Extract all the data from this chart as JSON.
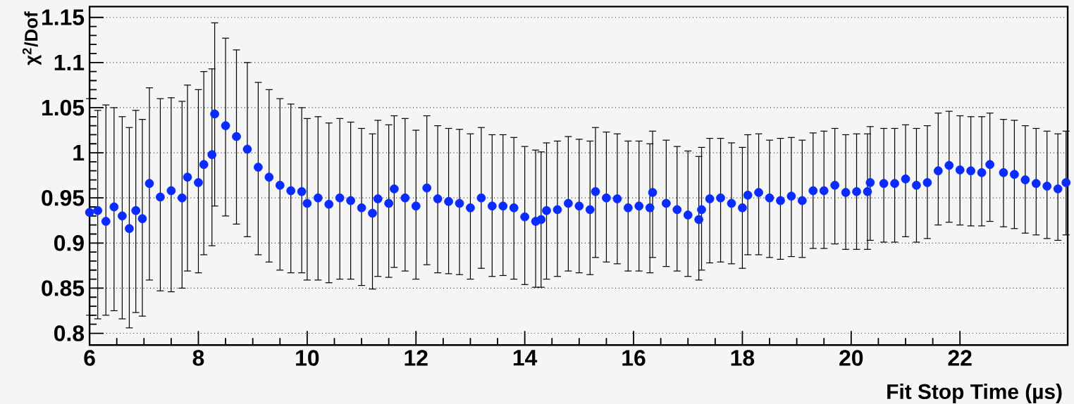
{
  "chart_data": {
    "type": "scatter",
    "xlabel": "Fit Stop Time (µs)",
    "ylabel": "χ$^{2}$/Dof",
    "xlim": [
      6,
      23.98
    ],
    "ylim": [
      0.787,
      1.162
    ],
    "xticks": [
      6,
      8,
      10,
      12,
      14,
      16,
      18,
      20,
      22
    ],
    "yticks": [
      0.8,
      0.85,
      0.9,
      0.95,
      1,
      1.05,
      1.1,
      1.15
    ],
    "grid": "y",
    "marker": "circle",
    "x": [
      6.0,
      6.15,
      6.3,
      6.45,
      6.6,
      6.73,
      6.85,
      6.97,
      7.1,
      7.3,
      7.5,
      7.7,
      7.8,
      8.0,
      8.1,
      8.25,
      8.3,
      8.5,
      8.7,
      8.9,
      9.1,
      9.3,
      9.5,
      9.7,
      9.9,
      10.0,
      10.2,
      10.4,
      10.6,
      10.8,
      11.0,
      11.2,
      11.3,
      11.5,
      11.6,
      11.8,
      12.0,
      12.2,
      12.4,
      12.6,
      12.8,
      13.0,
      13.2,
      13.4,
      13.6,
      13.8,
      14.0,
      14.2,
      14.3,
      14.4,
      14.6,
      14.8,
      15.0,
      15.2,
      15.3,
      15.5,
      15.7,
      15.9,
      16.1,
      16.3,
      16.35,
      16.6,
      16.8,
      17.0,
      17.2,
      17.25,
      17.4,
      17.6,
      17.8,
      18.0,
      18.1,
      18.3,
      18.5,
      18.7,
      18.9,
      19.1,
      19.3,
      19.5,
      19.7,
      19.9,
      20.1,
      20.3,
      20.35,
      20.6,
      20.8,
      21.0,
      21.2,
      21.4,
      21.6,
      21.8,
      22.0,
      22.2,
      22.4,
      22.55,
      22.8,
      23.0,
      23.2,
      23.4,
      23.6,
      23.8,
      23.95
    ],
    "series": [
      {
        "color": "#0a2bff",
        "values": [
          0.934,
          0.936,
          0.924,
          0.94,
          0.93,
          0.916,
          0.936,
          0.927,
          0.966,
          0.951,
          0.958,
          0.95,
          0.973,
          0.967,
          0.987,
          0.998,
          1.043,
          1.03,
          1.018,
          1.004,
          0.984,
          0.973,
          0.964,
          0.958,
          0.957,
          0.944,
          0.95,
          0.943,
          0.95,
          0.947,
          0.939,
          0.933,
          0.949,
          0.944,
          0.96,
          0.95,
          0.941,
          0.961,
          0.949,
          0.946,
          0.944,
          0.939,
          0.95,
          0.941,
          0.941,
          0.939,
          0.929,
          0.924,
          0.926,
          0.936,
          0.937,
          0.944,
          0.941,
          0.937,
          0.957,
          0.95,
          0.949,
          0.939,
          0.941,
          0.939,
          0.956,
          0.944,
          0.937,
          0.931,
          0.926,
          0.937,
          0.949,
          0.95,
          0.944,
          0.939,
          0.953,
          0.956,
          0.95,
          0.947,
          0.952,
          0.947,
          0.958,
          0.958,
          0.964,
          0.956,
          0.957,
          0.957,
          0.967,
          0.966,
          0.966,
          0.971,
          0.964,
          0.967,
          0.98,
          0.986,
          0.981,
          0.98,
          0.978,
          0.987,
          0.978,
          0.976,
          0.97,
          0.966,
          0.963,
          0.96,
          0.967
        ],
        "errors": [
          [
            0.82,
            1.06
          ],
          [
            0.816,
            1.047
          ],
          [
            0.82,
            1.053
          ],
          [
            0.825,
            1.05
          ],
          [
            0.816,
            1.04
          ],
          [
            0.806,
            1.028
          ],
          [
            0.823,
            1.047
          ],
          [
            0.819,
            1.037
          ],
          [
            0.859,
            1.072
          ],
          [
            0.847,
            1.06
          ],
          [
            0.846,
            1.061
          ],
          [
            0.85,
            1.057
          ],
          [
            0.869,
            1.075
          ],
          [
            0.867,
            1.07
          ],
          [
            0.887,
            1.09
          ],
          [
            0.897,
            1.093
          ],
          [
            0.941,
            1.144
          ],
          [
            0.93,
            1.127
          ],
          [
            0.921,
            1.114
          ],
          [
            0.907,
            1.1
          ],
          [
            0.887,
            1.078
          ],
          [
            0.879,
            1.07
          ],
          [
            0.87,
            1.06
          ],
          [
            0.867,
            1.054
          ],
          [
            0.867,
            1.05
          ],
          [
            0.859,
            1.038
          ],
          [
            0.859,
            1.04
          ],
          [
            0.856,
            1.033
          ],
          [
            0.86,
            1.038
          ],
          [
            0.86,
            1.034
          ],
          [
            0.853,
            1.027
          ],
          [
            0.849,
            1.021
          ],
          [
            0.863,
            1.036
          ],
          [
            0.862,
            1.031
          ],
          [
            0.873,
            1.041
          ],
          [
            0.869,
            1.038
          ],
          [
            0.86,
            1.025
          ],
          [
            0.876,
            1.041
          ],
          [
            0.867,
            1.03
          ],
          [
            0.866,
            1.027
          ],
          [
            0.865,
            1.026
          ],
          [
            0.86,
            1.021
          ],
          [
            0.872,
            1.028
          ],
          [
            0.863,
            1.02
          ],
          [
            0.864,
            1.02
          ],
          [
            0.86,
            1.017
          ],
          [
            0.854,
            1.007
          ],
          [
            0.851,
            1.003
          ],
          [
            0.851,
            1.001
          ],
          [
            0.86,
            1.011
          ],
          [
            0.863,
            1.013
          ],
          [
            0.869,
            1.018
          ],
          [
            0.867,
            1.015
          ],
          [
            0.865,
            1.013
          ],
          [
            0.884,
            1.028
          ],
          [
            0.879,
            1.023
          ],
          [
            0.877,
            1.021
          ],
          [
            0.869,
            1.013
          ],
          [
            0.869,
            1.013
          ],
          [
            0.867,
            1.01
          ],
          [
            0.884,
            1.024
          ],
          [
            0.874,
            1.014
          ],
          [
            0.869,
            1.007
          ],
          [
            0.863,
            1.002
          ],
          [
            0.859,
            0.996
          ],
          [
            0.87,
            1.006
          ],
          [
            0.878,
            1.016
          ],
          [
            0.879,
            1.016
          ],
          [
            0.877,
            1.011
          ],
          [
            0.872,
            1.006
          ],
          [
            0.887,
            1.02
          ],
          [
            0.887,
            1.021
          ],
          [
            0.884,
            1.014
          ],
          [
            0.882,
            1.016
          ],
          [
            0.885,
            1.017
          ],
          [
            0.884,
            1.014
          ],
          [
            0.894,
            1.022
          ],
          [
            0.894,
            1.024
          ],
          [
            0.899,
            1.027
          ],
          [
            0.893,
            1.02
          ],
          [
            0.893,
            1.021
          ],
          [
            0.893,
            1.021
          ],
          [
            0.903,
            1.029
          ],
          [
            0.901,
            1.027
          ],
          [
            0.901,
            1.027
          ],
          [
            0.907,
            1.031
          ],
          [
            0.901,
            1.027
          ],
          [
            0.905,
            1.03
          ],
          [
            0.92,
            1.044
          ],
          [
            0.923,
            1.046
          ],
          [
            0.92,
            1.041
          ],
          [
            0.919,
            1.04
          ],
          [
            0.919,
            1.04
          ],
          [
            0.924,
            1.044
          ],
          [
            0.918,
            1.037
          ],
          [
            0.916,
            1.036
          ],
          [
            0.911,
            1.03
          ],
          [
            0.909,
            1.027
          ],
          [
            0.905,
            1.024
          ],
          [
            0.903,
            1.021
          ],
          [
            0.909,
            1.024
          ]
        ]
      }
    ]
  }
}
